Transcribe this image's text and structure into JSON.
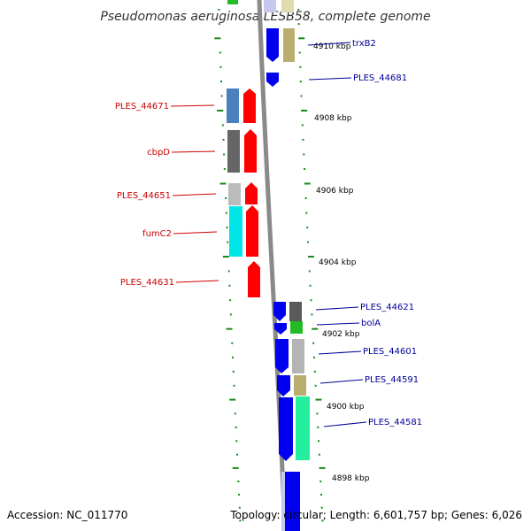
{
  "title": "Pseudomonas aeruginosa LESB58, complete genome",
  "footer": {
    "accession": "Accession: NC_011770",
    "summary": "Topology: circular; Length: 6,601,757 bp; Genes: 6,026"
  },
  "colors": {
    "backbone": "#8a8a8a",
    "scale_ticks": "#1a8a1a",
    "left_labels": "#cc0000",
    "right_labels": "#000099",
    "forward_strand": "#ff0000",
    "reverse_strand": "#0000ee"
  },
  "scale_labels": [
    "4910 kbp",
    "4908 kbp",
    "4906 kbp",
    "4904 kbp",
    "4902 kbp",
    "4900 kbp",
    "4898 kbp"
  ],
  "genes_left": [
    "PLES_44671",
    "cbpD",
    "PLES_44651",
    "fumC2",
    "PLES_44631"
  ],
  "genes_right": [
    "trxB2",
    "PLES_44681",
    "PLES_44621",
    "bolA",
    "PLES_44601",
    "PLES_44591",
    "PLES_44581"
  ]
}
